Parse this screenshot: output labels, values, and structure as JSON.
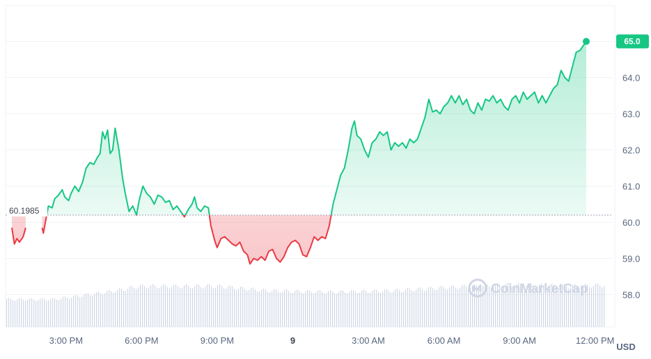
{
  "chart_data": {
    "type": "line",
    "unit_label": "USD",
    "reference_value": 60.1985,
    "reference_label": "60.1985",
    "last_value": 65.0,
    "last_label": "65.0",
    "ylim": [
      57.0,
      66.0
    ],
    "y_ticks": [
      {
        "value": 58.0,
        "label": "58.0"
      },
      {
        "value": 59.0,
        "label": "59.0"
      },
      {
        "value": 60.0,
        "label": "60.0"
      },
      {
        "value": 61.0,
        "label": "61.0"
      },
      {
        "value": 62.0,
        "label": "62.0"
      },
      {
        "value": 63.0,
        "label": "63.0"
      },
      {
        "value": 64.0,
        "label": "64.0"
      },
      {
        "value": 65.0,
        "label": "65.0"
      }
    ],
    "x_range_hours": [
      12.6,
      36.7
    ],
    "x_ticks": [
      {
        "t": 15,
        "label": "3:00 PM",
        "bold": false
      },
      {
        "t": 18,
        "label": "6:00 PM",
        "bold": false
      },
      {
        "t": 21,
        "label": "9:00 PM",
        "bold": false
      },
      {
        "t": 24,
        "label": "9",
        "bold": true
      },
      {
        "t": 27,
        "label": "3:00 AM",
        "bold": false
      },
      {
        "t": 30,
        "label": "6:00 AM",
        "bold": false
      },
      {
        "t": 33,
        "label": "9:00 AM",
        "bold": false
      },
      {
        "t": 36,
        "label": "12:00 PM",
        "bold": false
      }
    ],
    "series": [
      {
        "points": [
          [
            12.85,
            59.85
          ],
          [
            12.95,
            59.4
          ],
          [
            13.05,
            59.55
          ],
          [
            13.15,
            59.45
          ],
          [
            13.3,
            59.6
          ],
          [
            13.4,
            59.85
          ],
          [
            14.05,
            59.85
          ],
          [
            14.1,
            59.7
          ],
          [
            14.3,
            60.45
          ],
          [
            14.45,
            60.4
          ],
          [
            14.55,
            60.65
          ],
          [
            14.7,
            60.75
          ],
          [
            14.85,
            60.9
          ],
          [
            14.95,
            60.7
          ],
          [
            15.1,
            60.6
          ],
          [
            15.2,
            60.8
          ],
          [
            15.35,
            61.0
          ],
          [
            15.5,
            60.85
          ],
          [
            15.65,
            61.1
          ],
          [
            15.8,
            61.5
          ],
          [
            15.95,
            61.65
          ],
          [
            16.1,
            61.6
          ],
          [
            16.25,
            61.8
          ],
          [
            16.35,
            61.9
          ],
          [
            16.45,
            62.5
          ],
          [
            16.55,
            62.3
          ],
          [
            16.65,
            62.55
          ],
          [
            16.75,
            61.9
          ],
          [
            16.85,
            62.0
          ],
          [
            16.95,
            62.6
          ],
          [
            17.1,
            62.0
          ],
          [
            17.25,
            61.2
          ],
          [
            17.35,
            60.8
          ],
          [
            17.5,
            60.3
          ],
          [
            17.65,
            60.45
          ],
          [
            17.8,
            60.2
          ],
          [
            17.9,
            60.6
          ],
          [
            18.05,
            61.0
          ],
          [
            18.2,
            60.8
          ],
          [
            18.35,
            60.7
          ],
          [
            18.5,
            60.5
          ],
          [
            18.65,
            60.75
          ],
          [
            18.8,
            60.7
          ],
          [
            18.95,
            60.55
          ],
          [
            19.1,
            60.6
          ],
          [
            19.25,
            60.35
          ],
          [
            19.4,
            60.45
          ],
          [
            19.55,
            60.3
          ],
          [
            19.7,
            60.15
          ],
          [
            19.85,
            60.35
          ],
          [
            20.0,
            60.5
          ],
          [
            20.1,
            60.7
          ],
          [
            20.2,
            60.4
          ],
          [
            20.35,
            60.3
          ],
          [
            20.5,
            60.45
          ],
          [
            20.65,
            60.4
          ],
          [
            20.75,
            59.9
          ],
          [
            20.9,
            59.5
          ],
          [
            21.0,
            59.3
          ],
          [
            21.15,
            59.55
          ],
          [
            21.3,
            59.6
          ],
          [
            21.45,
            59.5
          ],
          [
            21.6,
            59.4
          ],
          [
            21.75,
            59.35
          ],
          [
            21.9,
            59.45
          ],
          [
            22.05,
            59.2
          ],
          [
            22.2,
            59.1
          ],
          [
            22.3,
            58.85
          ],
          [
            22.45,
            59.0
          ],
          [
            22.6,
            58.95
          ],
          [
            22.75,
            59.05
          ],
          [
            22.9,
            58.95
          ],
          [
            23.05,
            59.2
          ],
          [
            23.2,
            59.25
          ],
          [
            23.35,
            59.0
          ],
          [
            23.5,
            58.9
          ],
          [
            23.65,
            59.05
          ],
          [
            23.8,
            59.3
          ],
          [
            23.95,
            59.45
          ],
          [
            24.1,
            59.5
          ],
          [
            24.25,
            59.4
          ],
          [
            24.4,
            59.1
          ],
          [
            24.55,
            59.05
          ],
          [
            24.7,
            59.3
          ],
          [
            24.85,
            59.6
          ],
          [
            25.0,
            59.5
          ],
          [
            25.15,
            59.6
          ],
          [
            25.3,
            59.55
          ],
          [
            25.45,
            59.9
          ],
          [
            25.6,
            60.5
          ],
          [
            25.75,
            60.9
          ],
          [
            25.9,
            61.3
          ],
          [
            26.05,
            61.5
          ],
          [
            26.2,
            62.0
          ],
          [
            26.35,
            62.6
          ],
          [
            26.45,
            62.8
          ],
          [
            26.55,
            62.4
          ],
          [
            26.7,
            62.3
          ],
          [
            26.85,
            62.0
          ],
          [
            27.0,
            61.8
          ],
          [
            27.15,
            62.2
          ],
          [
            27.3,
            62.3
          ],
          [
            27.45,
            62.5
          ],
          [
            27.6,
            62.4
          ],
          [
            27.75,
            62.5
          ],
          [
            27.9,
            62.0
          ],
          [
            28.05,
            62.2
          ],
          [
            28.2,
            62.1
          ],
          [
            28.35,
            62.2
          ],
          [
            28.5,
            62.05
          ],
          [
            28.65,
            62.3
          ],
          [
            28.8,
            62.2
          ],
          [
            28.95,
            62.3
          ],
          [
            29.1,
            62.6
          ],
          [
            29.25,
            62.9
          ],
          [
            29.4,
            63.4
          ],
          [
            29.55,
            63.05
          ],
          [
            29.7,
            63.1
          ],
          [
            29.85,
            63.0
          ],
          [
            30.0,
            63.2
          ],
          [
            30.15,
            63.3
          ],
          [
            30.3,
            63.5
          ],
          [
            30.45,
            63.3
          ],
          [
            30.6,
            63.5
          ],
          [
            30.75,
            63.25
          ],
          [
            30.9,
            63.4
          ],
          [
            31.05,
            63.1
          ],
          [
            31.2,
            63.0
          ],
          [
            31.35,
            63.3
          ],
          [
            31.5,
            63.1
          ],
          [
            31.65,
            63.4
          ],
          [
            31.8,
            63.35
          ],
          [
            31.95,
            63.5
          ],
          [
            32.1,
            63.3
          ],
          [
            32.25,
            63.4
          ],
          [
            32.4,
            63.2
          ],
          [
            32.55,
            63.1
          ],
          [
            32.7,
            63.4
          ],
          [
            32.85,
            63.5
          ],
          [
            33.0,
            63.3
          ],
          [
            33.15,
            63.6
          ],
          [
            33.3,
            63.4
          ],
          [
            33.45,
            63.5
          ],
          [
            33.6,
            63.6
          ],
          [
            33.75,
            63.3
          ],
          [
            33.9,
            63.5
          ],
          [
            34.05,
            63.3
          ],
          [
            34.2,
            63.5
          ],
          [
            34.35,
            63.7
          ],
          [
            34.5,
            63.8
          ],
          [
            34.65,
            64.2
          ],
          [
            34.8,
            64.0
          ],
          [
            34.95,
            63.9
          ],
          [
            35.1,
            64.3
          ],
          [
            35.25,
            64.7
          ],
          [
            35.4,
            64.75
          ],
          [
            35.55,
            64.9
          ],
          [
            35.65,
            65.0
          ]
        ]
      }
    ],
    "volume": {
      "x": [
        12.6,
        14.5,
        17.0,
        17.9,
        21.0,
        23.0,
        25.6,
        28.0,
        30.0,
        32.5,
        35.0,
        36.7
      ],
      "values": [
        0.38,
        0.38,
        0.5,
        0.56,
        0.56,
        0.5,
        0.48,
        0.5,
        0.54,
        0.58,
        0.56,
        0.58
      ]
    }
  },
  "watermark": {
    "icon": "coinmarketcap-logo-icon",
    "text": "CoinMarketCap"
  },
  "colors": {
    "up": "#16c784",
    "down": "#ea3943",
    "grid": "#eff2f5",
    "badge": "#16c784",
    "volume": "#cfd6e4"
  }
}
